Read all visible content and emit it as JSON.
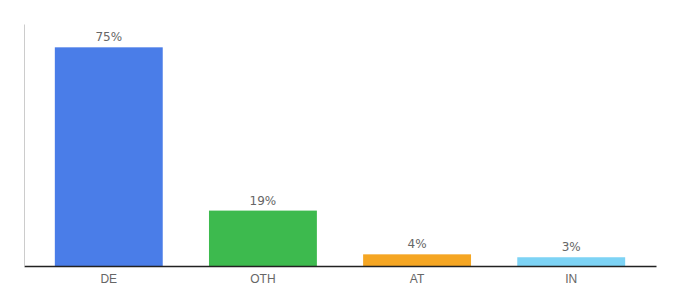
{
  "chart_data": {
    "type": "bar",
    "categories": [
      "DE",
      "OTH",
      "AT",
      "IN"
    ],
    "values": [
      75,
      19,
      4,
      3
    ],
    "value_labels": [
      "75%",
      "19%",
      "4%",
      "3%"
    ],
    "colors": [
      "#4a7de8",
      "#3dba4e",
      "#f5a623",
      "#7dd3f5"
    ],
    "ylim": [
      0,
      83
    ],
    "data_labels": true,
    "tick_labels": "x"
  }
}
